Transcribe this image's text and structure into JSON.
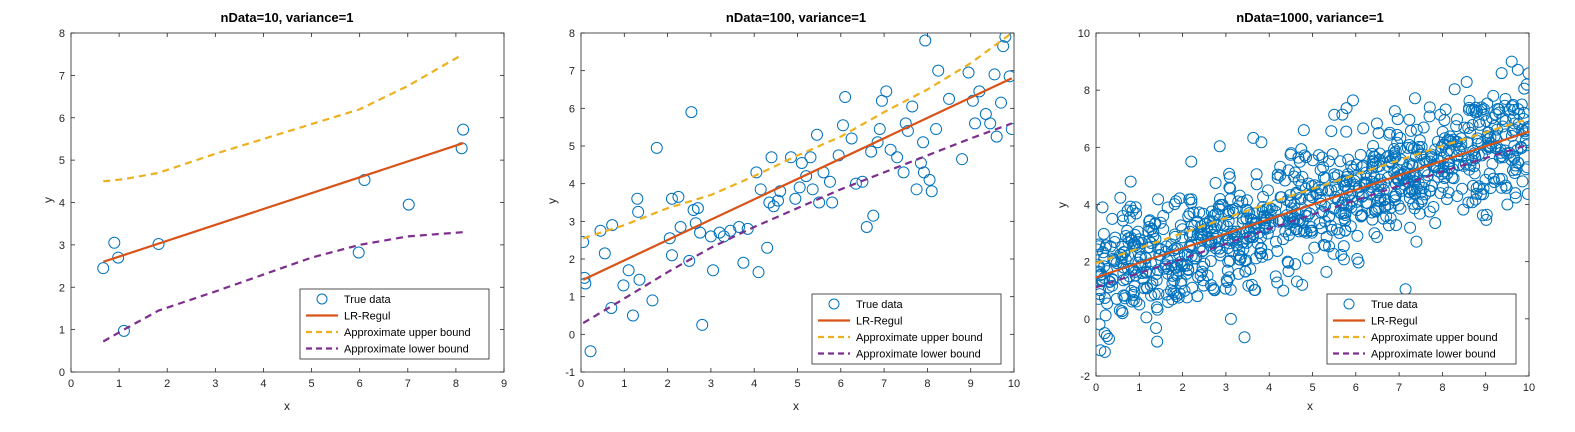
{
  "colors": {
    "true_data": "#0072BD",
    "lr_regul": "#D95319",
    "upper_bound": "#EDB120",
    "lower_bound": "#7E2F8E",
    "axes": "#262626",
    "background": "#FFFFFF"
  },
  "chart_data": [
    {
      "type": "scatter",
      "title": "nData=10, variance=1",
      "xlabel": "x",
      "ylabel": "y",
      "xlim": [
        0,
        9
      ],
      "ylim": [
        0,
        8
      ],
      "xticks": [
        "0",
        "1",
        "2",
        "3",
        "4",
        "5",
        "6",
        "7",
        "8",
        "9"
      ],
      "yticks": [
        "0",
        "1",
        "2",
        "3",
        "4",
        "5",
        "6",
        "7",
        "8"
      ],
      "grid": false,
      "legend_position": "bottom-right",
      "legend": [
        "True data",
        "LR-Regul",
        "Approximate upper bound",
        "Approximate lower bound"
      ],
      "series": [
        {
          "name": "True data",
          "kind": "points",
          "x": [
            0.67,
            0.9,
            0.98,
            1.1,
            1.82,
            5.98,
            6.1,
            7.02,
            8.12,
            8.15
          ],
          "y": [
            2.45,
            3.05,
            2.7,
            0.97,
            3.02,
            2.82,
            4.53,
            3.95,
            5.28,
            5.72
          ]
        },
        {
          "name": "LR-Regul",
          "kind": "line",
          "x": [
            0.67,
            8.15
          ],
          "y": [
            2.6,
            5.4
          ]
        },
        {
          "name": "Approximate upper bound",
          "kind": "dashed",
          "x": [
            0.67,
            1.1,
            1.82,
            3.0,
            4.0,
            5.0,
            6.0,
            7.0,
            8.15
          ],
          "y": [
            4.5,
            4.55,
            4.7,
            5.15,
            5.5,
            5.85,
            6.2,
            6.75,
            7.5
          ]
        },
        {
          "name": "Approximate lower bound",
          "kind": "dashed",
          "x": [
            0.67,
            1.1,
            1.82,
            3.0,
            4.0,
            5.0,
            6.0,
            7.0,
            8.15
          ],
          "y": [
            0.72,
            1.0,
            1.45,
            1.9,
            2.3,
            2.7,
            3.0,
            3.2,
            3.3
          ]
        }
      ]
    },
    {
      "type": "scatter",
      "title": "nData=100, variance=1",
      "xlabel": "x",
      "ylabel": "y",
      "xlim": [
        0,
        10
      ],
      "ylim": [
        -1,
        8
      ],
      "xticks": [
        "0",
        "1",
        "2",
        "3",
        "4",
        "5",
        "6",
        "7",
        "8",
        "9",
        "10"
      ],
      "yticks": [
        "-1",
        "0",
        "1",
        "2",
        "3",
        "4",
        "5",
        "6",
        "7",
        "8"
      ],
      "grid": false,
      "legend_position": "bottom-right",
      "legend": [
        "True data",
        "LR-Regul",
        "Approximate upper bound",
        "Approximate lower bound"
      ],
      "series": [
        {
          "name": "True data",
          "kind": "points",
          "x": [
            0.05,
            0.08,
            0.1,
            0.22,
            0.45,
            0.55,
            0.7,
            0.72,
            0.98,
            1.1,
            1.2,
            1.3,
            1.32,
            1.35,
            1.65,
            2.05,
            2.1,
            2.25,
            2.3,
            2.5,
            2.55,
            2.6,
            2.65,
            2.7,
            2.75,
            2.8,
            3.0,
            3.05,
            3.2,
            3.3,
            3.65,
            3.75,
            3.85,
            4.05,
            4.1,
            4.15,
            4.3,
            4.35,
            4.4,
            4.45,
            4.55,
            4.6,
            4.95,
            5.05,
            5.1,
            5.2,
            5.3,
            5.35,
            5.45,
            5.5,
            5.6,
            5.75,
            5.95,
            6.05,
            6.1,
            6.25,
            6.35,
            6.5,
            6.6,
            6.7,
            6.75,
            6.85,
            6.95,
            7.05,
            7.15,
            7.3,
            7.45,
            7.5,
            7.55,
            7.65,
            7.75,
            7.85,
            7.9,
            7.92,
            7.95,
            8.05,
            8.1,
            8.2,
            8.25,
            8.8,
            8.95,
            9.05,
            9.1,
            9.2,
            9.35,
            9.45,
            9.55,
            9.6,
            9.7,
            9.75,
            9.8,
            9.9,
            9.95,
            2.1,
            5.8,
            3.45,
            6.9,
            4.85,
            8.5,
            1.75
          ],
          "y": [
            2.45,
            1.5,
            1.35,
            -0.45,
            2.75,
            2.15,
            0.7,
            2.9,
            1.3,
            1.7,
            0.5,
            3.6,
            3.25,
            1.45,
            0.9,
            2.55,
            2.1,
            3.65,
            2.85,
            1.95,
            5.9,
            3.3,
            2.95,
            3.35,
            2.7,
            0.25,
            2.6,
            1.7,
            2.7,
            2.6,
            2.85,
            1.9,
            2.8,
            4.3,
            1.65,
            3.85,
            2.3,
            3.5,
            4.7,
            3.4,
            3.55,
            3.8,
            3.6,
            3.9,
            4.55,
            4.2,
            4.7,
            3.85,
            5.3,
            3.5,
            4.3,
            4.05,
            4.75,
            5.55,
            6.3,
            5.2,
            4.0,
            4.05,
            2.85,
            4.85,
            3.15,
            5.1,
            6.2,
            6.45,
            4.9,
            4.7,
            4.3,
            5.6,
            5.4,
            6.05,
            3.85,
            4.55,
            5.1,
            4.3,
            7.8,
            4.1,
            3.8,
            5.45,
            7.0,
            4.65,
            6.95,
            6.2,
            5.6,
            6.45,
            5.85,
            5.6,
            6.9,
            5.25,
            6.15,
            7.65,
            7.9,
            6.85,
            5.45,
            3.6,
            3.5,
            2.75,
            5.45,
            4.7,
            6.25,
            4.95
          ],
          "count_note": "100 points"
        },
        {
          "name": "LR-Regul",
          "kind": "line",
          "x": [
            0.05,
            9.95
          ],
          "y": [
            1.45,
            6.8
          ]
        },
        {
          "name": "Approximate upper bound",
          "kind": "dashed",
          "x": [
            0.05,
            1.0,
            2.0,
            3.0,
            4.0,
            5.0,
            6.0,
            7.0,
            8.0,
            9.0,
            9.95
          ],
          "y": [
            2.55,
            2.9,
            3.35,
            3.7,
            4.2,
            4.75,
            5.25,
            5.9,
            6.5,
            7.2,
            8.0
          ]
        },
        {
          "name": "Approximate lower bound",
          "kind": "dashed",
          "x": [
            0.05,
            1.0,
            2.0,
            3.0,
            4.0,
            5.0,
            6.0,
            7.0,
            8.0,
            9.0,
            9.95
          ],
          "y": [
            0.3,
            0.95,
            1.65,
            2.3,
            2.85,
            3.35,
            3.85,
            4.3,
            4.75,
            5.2,
            5.6
          ]
        }
      ]
    },
    {
      "type": "scatter",
      "title": "nData=1000, variance=1",
      "xlabel": "x",
      "ylabel": "y",
      "xlim": [
        0,
        10
      ],
      "ylim": [
        -2,
        10
      ],
      "xticks": [
        "0",
        "1",
        "2",
        "3",
        "4",
        "5",
        "6",
        "7",
        "8",
        "9",
        "10"
      ],
      "yticks": [
        "-2",
        "0",
        "2",
        "4",
        "6",
        "8",
        "10"
      ],
      "grid": false,
      "legend_position": "bottom-right",
      "legend": [
        "True data",
        "LR-Regul",
        "Approximate upper bound",
        "Approximate lower bound"
      ],
      "series": [
        {
          "name": "True data",
          "kind": "points",
          "n_points": 1000,
          "x": [
            0.1,
            0.2,
            0.3,
            0.15,
            0.8,
            0.55,
            2.2,
            1.0,
            9.6,
            9.95,
            9.5,
            7.4,
            4.8,
            0.25
          ],
          "y": [
            -1.1,
            -0.5,
            -0.7,
            3.9,
            4.8,
            0.3,
            5.5,
            0.5,
            9.0,
            8.2,
            4.0,
            2.7,
            6.6,
            -0.6
          ],
          "trend_slope": 0.5,
          "trend_intercept": 1.5,
          "noise_sd": 1.0
        },
        {
          "name": "LR-Regul",
          "kind": "line",
          "x": [
            0.0,
            10.0
          ],
          "y": [
            1.45,
            6.55
          ]
        },
        {
          "name": "Approximate upper bound",
          "kind": "dashed",
          "x": [
            0.0,
            2.0,
            4.0,
            6.0,
            8.0,
            10.0
          ],
          "y": [
            1.95,
            3.0,
            4.05,
            5.05,
            6.05,
            7.0
          ]
        },
        {
          "name": "Approximate lower bound",
          "kind": "dashed",
          "x": [
            0.0,
            2.0,
            4.0,
            6.0,
            8.0,
            10.0
          ],
          "y": [
            1.1,
            2.1,
            3.15,
            4.15,
            5.15,
            6.1
          ]
        }
      ]
    }
  ]
}
